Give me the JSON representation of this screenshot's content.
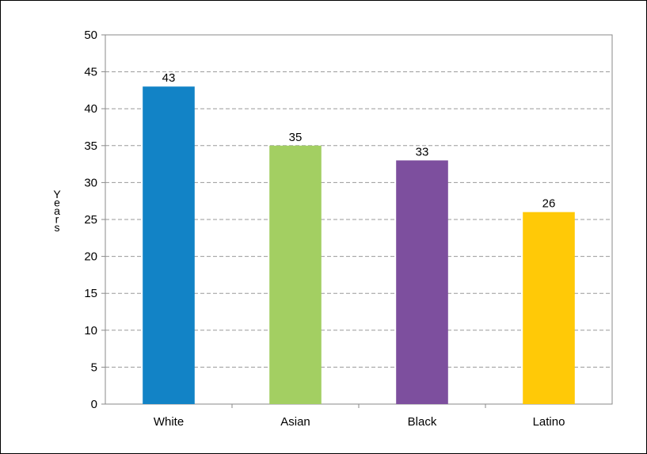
{
  "chart_data": {
    "type": "bar",
    "categories": [
      "White",
      "Asian",
      "Black",
      "Latino"
    ],
    "values": [
      43,
      35,
      33,
      26
    ],
    "data_labels": [
      "43",
      "35",
      "33",
      "26"
    ],
    "bar_colors": [
      "#1283C6",
      "#A3CF62",
      "#7D4F9E",
      "#FFC907"
    ],
    "ylabel": "Years",
    "ylim": [
      0,
      50
    ],
    "ytick_values": [
      0,
      5,
      10,
      15,
      20,
      25,
      30,
      35,
      40,
      45,
      50
    ],
    "ytick_labels": [
      "0",
      "5",
      "10",
      "15",
      "20",
      "25",
      "30",
      "35",
      "40",
      "45",
      "50"
    ],
    "grid": true,
    "grid_style": "dashed",
    "legend": false
  }
}
